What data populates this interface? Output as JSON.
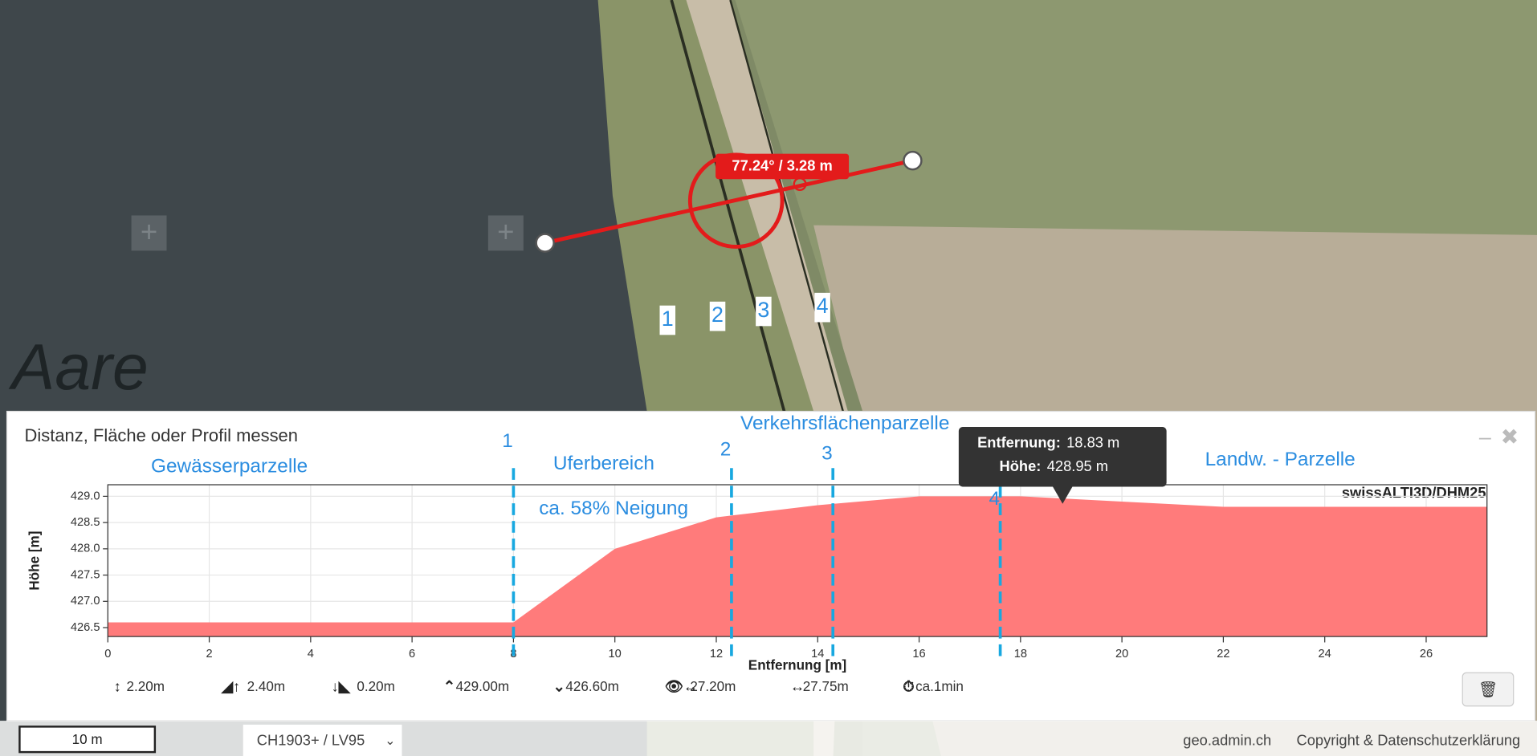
{
  "map": {
    "label": "Aare",
    "measure_label": "77.24° / 3.28 m",
    "markers": [
      "1",
      "2",
      "3",
      "4"
    ]
  },
  "panel": {
    "title": "Distanz, Fläche oder Profil messen",
    "source": "swissALTI3D/DHM25",
    "stats": [
      "2.20m",
      "2.40m",
      "0.20m",
      "429.00m",
      "426.60m",
      "27.20m",
      "27.75m",
      "ca.1min"
    ]
  },
  "chart_data": {
    "type": "area",
    "y_label": "Höhe [m]",
    "x_label": "Entfernung [m]",
    "x": [
      0,
      8,
      10,
      12,
      14,
      16,
      18,
      20,
      22,
      27.2
    ],
    "values": [
      426.6,
      426.6,
      428.0,
      428.6,
      428.83,
      429.0,
      429.0,
      428.9,
      428.8,
      428.8
    ],
    "color": "#ff7b7b",
    "xlim": [
      0,
      27.2
    ],
    "ylim": [
      426.33,
      429.22
    ],
    "xticks": [
      0,
      2,
      4,
      6,
      8,
      10,
      12,
      14,
      16,
      18,
      20,
      22,
      24,
      26
    ],
    "yticks": [
      {
        "value": 426.5,
        "label": "426.5"
      },
      {
        "value": 427,
        "label": "427.0"
      },
      {
        "value": 427.5,
        "label": "427.5"
      },
      {
        "value": 428,
        "label": "428.0"
      },
      {
        "value": 428.5,
        "label": "428.5"
      },
      {
        "value": 429,
        "label": "429.0"
      }
    ],
    "grid": true,
    "markers": [
      {
        "x": 8.0,
        "label": "1"
      },
      {
        "x": 12.3,
        "label": "2"
      },
      {
        "x": 14.3,
        "label": "3"
      },
      {
        "x": 17.6,
        "label": "4"
      }
    ],
    "annotations": [
      "Gewässerparzelle",
      "Uferbereich",
      "ca. 58% Neigung",
      "Verkehrsflächenparzelle",
      "Landw. - Parzelle"
    ],
    "tooltip": {
      "x_name": "Entfernung:",
      "x_text": "18.83 m",
      "y_name": "Höhe:",
      "y_text": "428.95 m",
      "x": 18.83,
      "y": 428.95
    }
  },
  "footer": {
    "scale": "10 m",
    "projection": "CH1903+ / LV95",
    "site": "geo.admin.ch",
    "copyright": "Copyright & Datenschutzerklärung"
  }
}
